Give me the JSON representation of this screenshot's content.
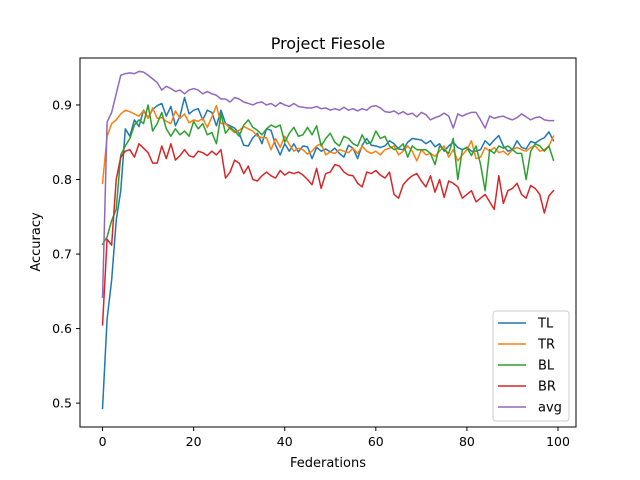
{
  "chart_data": {
    "type": "line",
    "title": "Project Fiesole",
    "xlabel": "Federations",
    "ylabel": "Accuracy",
    "xlim": [
      -4.95,
      103.95
    ],
    "ylim": [
      0.468,
      0.963
    ],
    "xticks": [
      0,
      20,
      40,
      60,
      80,
      100
    ],
    "yticks": [
      0.5,
      0.6,
      0.7,
      0.8,
      0.9
    ],
    "xtick_labels": [
      "0",
      "20",
      "40",
      "60",
      "80",
      "100"
    ],
    "ytick_labels": [
      "0.5",
      "0.6",
      "0.7",
      "0.8",
      "0.9"
    ],
    "legend_position": "lower-right",
    "series": [
      {
        "name": "TL",
        "color": "#1f77b4",
        "values": [
          0.493,
          0.613,
          0.665,
          0.745,
          0.785,
          0.868,
          0.858,
          0.88,
          0.871,
          0.893,
          0.883,
          0.894,
          0.899,
          0.902,
          0.885,
          0.898,
          0.872,
          0.885,
          0.91,
          0.888,
          0.893,
          0.895,
          0.88,
          0.893,
          0.89,
          0.872,
          0.893,
          0.875,
          0.872,
          0.869,
          0.862,
          0.846,
          0.845,
          0.856,
          0.862,
          0.848,
          0.868,
          0.866,
          0.846,
          0.833,
          0.848,
          0.838,
          0.848,
          0.837,
          0.845,
          0.844,
          0.828,
          0.843,
          0.838,
          0.841,
          0.837,
          0.842,
          0.835,
          0.83,
          0.846,
          0.842,
          0.828,
          0.846,
          0.855,
          0.846,
          0.845,
          0.843,
          0.845,
          0.852,
          0.848,
          0.841,
          0.84,
          0.85,
          0.855,
          0.854,
          0.853,
          0.848,
          0.852,
          0.844,
          0.848,
          0.838,
          0.845,
          0.85,
          0.843,
          0.84,
          0.843,
          0.838,
          0.838,
          0.84,
          0.852,
          0.846,
          0.853,
          0.859,
          0.845,
          0.838,
          0.84,
          0.852,
          0.843,
          0.841,
          0.851,
          0.849,
          0.853,
          0.856,
          0.864,
          0.852
        ]
      },
      {
        "name": "TR",
        "color": "#ff7f0e",
        "values": [
          0.795,
          0.858,
          0.875,
          0.88,
          0.888,
          0.893,
          0.891,
          0.888,
          0.885,
          0.892,
          0.882,
          0.896,
          0.882,
          0.883,
          0.878,
          0.875,
          0.892,
          0.882,
          0.888,
          0.876,
          0.88,
          0.878,
          0.882,
          0.87,
          0.884,
          0.899,
          0.875,
          0.875,
          0.868,
          0.863,
          0.866,
          0.871,
          0.868,
          0.865,
          0.858,
          0.856,
          0.856,
          0.84,
          0.855,
          0.843,
          0.858,
          0.847,
          0.838,
          0.842,
          0.84,
          0.834,
          0.838,
          0.845,
          0.848,
          0.833,
          0.837,
          0.835,
          0.84,
          0.838,
          0.836,
          0.842,
          0.835,
          0.845,
          0.838,
          0.835,
          0.838,
          0.833,
          0.84,
          0.842,
          0.845,
          0.833,
          0.838,
          0.845,
          0.838,
          0.825,
          0.84,
          0.833,
          0.835,
          0.831,
          0.838,
          0.845,
          0.83,
          0.84,
          0.825,
          0.833,
          0.84,
          0.852,
          0.828,
          0.83,
          0.843,
          0.838,
          0.843,
          0.836,
          0.838,
          0.833,
          0.84,
          0.843,
          0.84,
          0.838,
          0.843,
          0.845,
          0.838,
          0.84,
          0.845,
          0.858
        ]
      },
      {
        "name": "BL",
        "color": "#2ca02c",
        "values": [
          0.713,
          0.723,
          0.745,
          0.76,
          0.833,
          0.845,
          0.855,
          0.873,
          0.88,
          0.875,
          0.9,
          0.865,
          0.875,
          0.89,
          0.868,
          0.858,
          0.868,
          0.86,
          0.865,
          0.858,
          0.878,
          0.868,
          0.875,
          0.86,
          0.863,
          0.848,
          0.888,
          0.862,
          0.87,
          0.865,
          0.858,
          0.873,
          0.88,
          0.87,
          0.866,
          0.86,
          0.868,
          0.873,
          0.87,
          0.873,
          0.85,
          0.862,
          0.87,
          0.858,
          0.86,
          0.87,
          0.86,
          0.872,
          0.845,
          0.855,
          0.862,
          0.85,
          0.845,
          0.858,
          0.855,
          0.848,
          0.845,
          0.86,
          0.848,
          0.85,
          0.865,
          0.855,
          0.858,
          0.845,
          0.84,
          0.842,
          0.848,
          0.83,
          0.845,
          0.84,
          0.84,
          0.84,
          0.835,
          0.82,
          0.845,
          0.84,
          0.835,
          0.855,
          0.8,
          0.84,
          0.843,
          0.832,
          0.845,
          0.82,
          0.785,
          0.84,
          0.835,
          0.845,
          0.842,
          0.845,
          0.84,
          0.835,
          0.835,
          0.8,
          0.838,
          0.848,
          0.845,
          0.838,
          0.845,
          0.826
        ]
      },
      {
        "name": "BR",
        "color": "#d62728",
        "values": [
          0.605,
          0.72,
          0.712,
          0.8,
          0.83,
          0.838,
          0.84,
          0.83,
          0.848,
          0.842,
          0.836,
          0.822,
          0.822,
          0.845,
          0.828,
          0.848,
          0.826,
          0.832,
          0.84,
          0.832,
          0.83,
          0.838,
          0.836,
          0.832,
          0.838,
          0.833,
          0.84,
          0.802,
          0.81,
          0.826,
          0.822,
          0.808,
          0.818,
          0.8,
          0.798,
          0.805,
          0.81,
          0.805,
          0.802,
          0.812,
          0.806,
          0.81,
          0.808,
          0.81,
          0.806,
          0.8,
          0.793,
          0.815,
          0.788,
          0.808,
          0.81,
          0.82,
          0.818,
          0.81,
          0.806,
          0.805,
          0.795,
          0.79,
          0.81,
          0.808,
          0.812,
          0.806,
          0.802,
          0.81,
          0.78,
          0.775,
          0.793,
          0.8,
          0.805,
          0.808,
          0.798,
          0.79,
          0.805,
          0.783,
          0.8,
          0.776,
          0.798,
          0.795,
          0.79,
          0.775,
          0.78,
          0.785,
          0.77,
          0.775,
          0.78,
          0.77,
          0.76,
          0.805,
          0.768,
          0.785,
          0.788,
          0.795,
          0.78,
          0.775,
          0.792,
          0.788,
          0.78,
          0.755,
          0.778,
          0.785
        ]
      },
      {
        "name": "avg",
        "color": "#9467bd",
        "values": [
          0.642,
          0.877,
          0.89,
          0.915,
          0.94,
          0.942,
          0.943,
          0.942,
          0.945,
          0.944,
          0.94,
          0.935,
          0.93,
          0.92,
          0.925,
          0.922,
          0.918,
          0.92,
          0.915,
          0.92,
          0.922,
          0.92,
          0.915,
          0.918,
          0.915,
          0.913,
          0.908,
          0.908,
          0.904,
          0.91,
          0.908,
          0.904,
          0.902,
          0.9,
          0.903,
          0.904,
          0.9,
          0.902,
          0.898,
          0.903,
          0.9,
          0.898,
          0.902,
          0.898,
          0.897,
          0.896,
          0.896,
          0.898,
          0.895,
          0.896,
          0.893,
          0.895,
          0.893,
          0.897,
          0.893,
          0.895,
          0.892,
          0.895,
          0.893,
          0.898,
          0.899,
          0.896,
          0.891,
          0.89,
          0.892,
          0.888,
          0.891,
          0.887,
          0.889,
          0.884,
          0.89,
          0.887,
          0.88,
          0.883,
          0.885,
          0.889,
          0.885,
          0.869,
          0.888,
          0.885,
          0.888,
          0.89,
          0.89,
          0.88,
          0.869,
          0.885,
          0.882,
          0.884,
          0.885,
          0.882,
          0.88,
          0.883,
          0.888,
          0.884,
          0.88,
          0.883,
          0.884,
          0.88,
          0.879,
          0.879
        ]
      }
    ]
  }
}
